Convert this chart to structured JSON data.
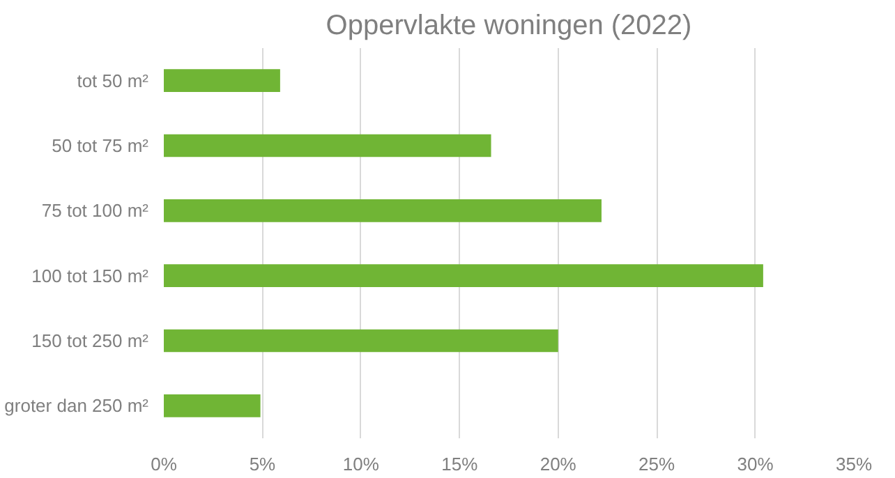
{
  "chart_data": {
    "type": "bar",
    "orientation": "horizontal",
    "title": "Oppervlakte woningen (2022)",
    "categories": [
      "tot 50 m²",
      "50 tot 75 m²",
      "75 tot 100 m²",
      "100 tot 150 m²",
      "150 tot 250 m²",
      "groter dan 250 m²"
    ],
    "values": [
      5.9,
      16.6,
      22.2,
      30.4,
      20.0,
      4.9
    ],
    "color": "#70b535",
    "xlim": [
      0,
      35
    ],
    "xticks": [
      {
        "value": 0,
        "label": "0%"
      },
      {
        "value": 5,
        "label": "5%"
      },
      {
        "value": 10,
        "label": "10%"
      },
      {
        "value": 15,
        "label": "15%"
      },
      {
        "value": 20,
        "label": "20%"
      },
      {
        "value": 25,
        "label": "25%"
      },
      {
        "value": 30,
        "label": "30%"
      },
      {
        "value": 35,
        "label": "35%"
      }
    ],
    "grid": "x"
  }
}
